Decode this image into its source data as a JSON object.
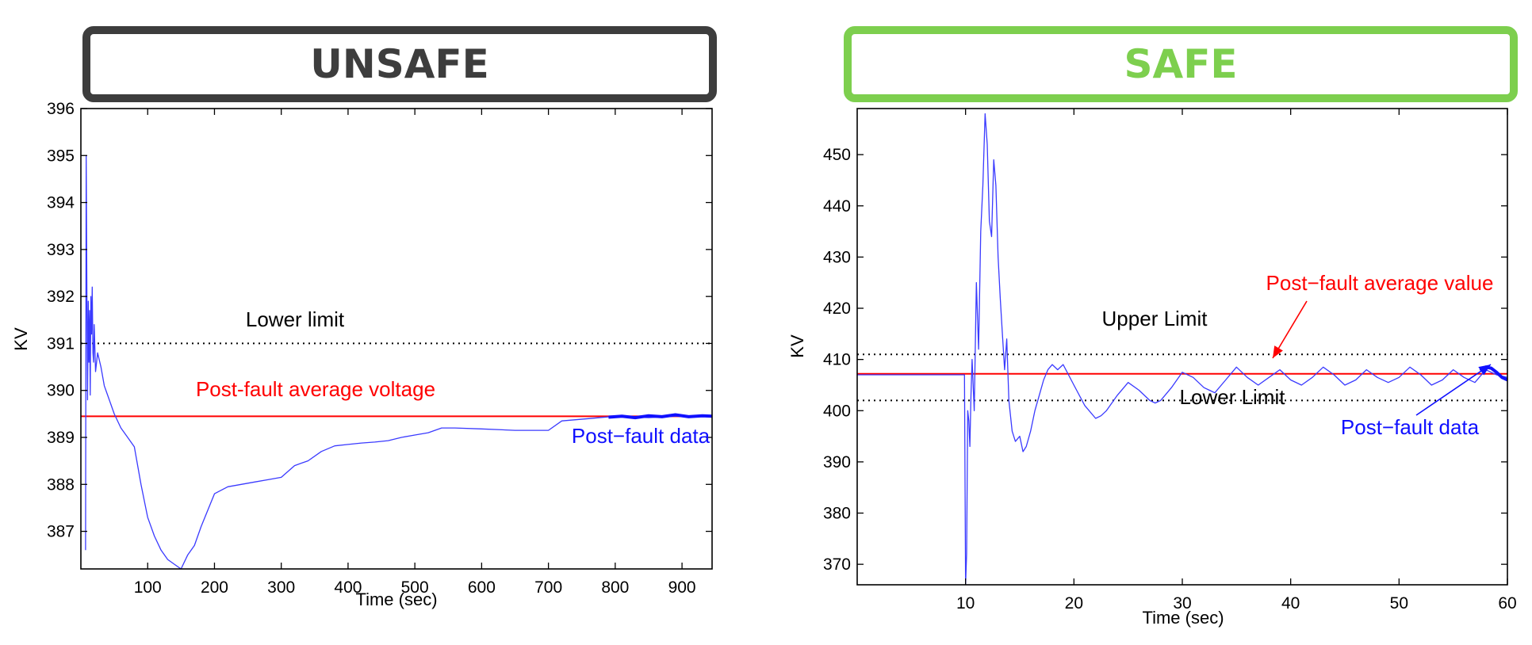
{
  "banners": {
    "unsafe": {
      "label": "UNSAFE",
      "color": "#3d3d3d"
    },
    "safe": {
      "label": "SAFE",
      "color": "#7dcf4e"
    }
  },
  "chart_data": [
    {
      "type": "line",
      "title": "",
      "xlabel": "Time (sec)",
      "ylabel": "KV",
      "xlim": [
        0,
        945
      ],
      "ylim": [
        386.2,
        396
      ],
      "xticks": [
        100,
        200,
        300,
        400,
        500,
        600,
        700,
        800,
        900
      ],
      "yticks": [
        387,
        388,
        389,
        390,
        391,
        392,
        393,
        394,
        395,
        396
      ],
      "grid": false,
      "series": [
        {
          "color": "#3a3aff",
          "x": [
            7,
            8,
            9,
            10,
            11,
            12,
            13,
            14,
            15,
            16,
            17,
            18,
            19,
            20,
            22,
            25,
            30,
            35,
            40,
            45,
            50,
            60,
            70,
            80,
            90,
            100,
            110,
            120,
            130,
            140,
            150,
            160,
            170,
            180,
            200,
            220,
            240,
            260,
            280,
            300,
            320,
            340,
            360,
            380,
            400,
            420,
            440,
            460,
            480,
            500,
            520,
            540,
            560,
            600,
            650,
            700,
            720,
            760,
            800,
            850,
            900,
            945
          ],
          "y": [
            386.6,
            395,
            392,
            389.8,
            391.9,
            390.6,
            391.7,
            389.9,
            392,
            391.2,
            392.2,
            390.8,
            390.6,
            391.4,
            390.4,
            390.8,
            390.5,
            390.1,
            389.9,
            389.7,
            389.5,
            389.2,
            389,
            388.8,
            388,
            387.3,
            386.9,
            386.6,
            386.4,
            386.3,
            386.2,
            386.5,
            386.7,
            387.1,
            387.8,
            387.95,
            388.0,
            388.05,
            388.1,
            388.15,
            388.4,
            388.5,
            388.7,
            388.82,
            388.85,
            388.88,
            388.9,
            388.93,
            389.0,
            389.05,
            389.1,
            389.2,
            389.2,
            389.18,
            389.15,
            389.15,
            389.35,
            389.4,
            389.45,
            389.42,
            389.46,
            389.45
          ]
        },
        {
          "color": "#1010ff",
          "x": [
            790,
            810,
            830,
            850,
            870,
            890,
            910,
            930,
            945
          ],
          "y": [
            389.43,
            389.45,
            389.42,
            389.46,
            389.44,
            389.48,
            389.44,
            389.46,
            389.45
          ]
        }
      ],
      "reference_lines": [
        {
          "kind": "limit",
          "y": 391,
          "style": "dotted",
          "color": "#000000",
          "label": "Lower limit"
        },
        {
          "kind": "average",
          "y": 389.45,
          "style": "solid",
          "color": "#ff0000",
          "label": "Post-fault average voltage"
        }
      ],
      "annotations": [
        {
          "text": "Post−fault data",
          "color": "#1010ff"
        }
      ]
    },
    {
      "type": "line",
      "title": "",
      "xlabel": "Time (sec)",
      "ylabel": "KV",
      "xlim": [
        0,
        60
      ],
      "ylim": [
        366,
        459
      ],
      "xticks": [
        10,
        20,
        30,
        40,
        50,
        60
      ],
      "yticks": [
        370,
        380,
        390,
        400,
        410,
        420,
        430,
        440,
        450
      ],
      "grid": false,
      "series": [
        {
          "color": "#3a3aff",
          "x": [
            0,
            9.9,
            10.0,
            10.1,
            10.2,
            10.3,
            10.4,
            10.5,
            10.6,
            10.8,
            11.0,
            11.2,
            11.4,
            11.6,
            11.8,
            12.0,
            12.2,
            12.4,
            12.6,
            12.8,
            13.0,
            13.2,
            13.4,
            13.6,
            13.8,
            14.0,
            14.3,
            14.6,
            15.0,
            15.3,
            15.6,
            16.0,
            16.4,
            16.8,
            17.2,
            17.6,
            18.0,
            18.5,
            19.0,
            19.5,
            20.0,
            21.0,
            22.0,
            22.5,
            23.0,
            24.0,
            25.0,
            26.0,
            27.0,
            27.5,
            28.0,
            29.0,
            30.0,
            31.0,
            32.0,
            33.0,
            34.0,
            35.0,
            36.0,
            37.0,
            38.0,
            39.0,
            40.0,
            41.0,
            42.0,
            43.0,
            44.0,
            45.0,
            46.0,
            47.0,
            48.0,
            49.0,
            50.0,
            51.0,
            52.0,
            53.0,
            54.0,
            55.0,
            56.0,
            57.0,
            58.0,
            59.0,
            60.0
          ],
          "y": [
            407,
            407,
            366,
            372,
            400,
            398,
            393,
            403,
            410,
            400,
            425,
            412,
            435,
            444,
            458,
            452,
            437,
            434,
            449,
            444,
            430,
            422,
            415,
            408,
            414,
            402,
            396,
            394,
            395,
            392,
            393,
            396,
            400,
            403,
            406,
            408,
            409,
            408,
            409,
            407,
            405,
            401,
            398.5,
            399,
            400,
            403,
            405.5,
            404,
            402,
            401.5,
            402,
            404.5,
            407.5,
            406.5,
            404.5,
            403.5,
            406,
            408.5,
            406.5,
            405,
            406.5,
            408,
            406,
            405,
            406.5,
            408.5,
            407,
            405,
            406,
            408,
            406.5,
            405.5,
            406.5,
            408.5,
            407,
            405,
            406,
            408,
            406.5,
            405.5,
            408,
            407,
            406.5
          ]
        },
        {
          "color": "#1010ff",
          "x": [
            57.5,
            58.0,
            58.5,
            59.0,
            59.5,
            60.0
          ],
          "y": [
            407.8,
            408.5,
            408.3,
            407.5,
            406.5,
            406
          ]
        }
      ],
      "reference_lines": [
        {
          "kind": "limit",
          "y": 411,
          "style": "dotted",
          "color": "#000000",
          "label": "Upper Limit"
        },
        {
          "kind": "limit",
          "y": 402,
          "style": "dotted",
          "color": "#000000",
          "label": "Lower Limit"
        },
        {
          "kind": "average",
          "y": 407.2,
          "style": "solid",
          "color": "#ff0000",
          "label": "Post−fault average value"
        }
      ],
      "annotations": [
        {
          "text": "Post−fault data",
          "color": "#1010ff"
        }
      ]
    }
  ]
}
